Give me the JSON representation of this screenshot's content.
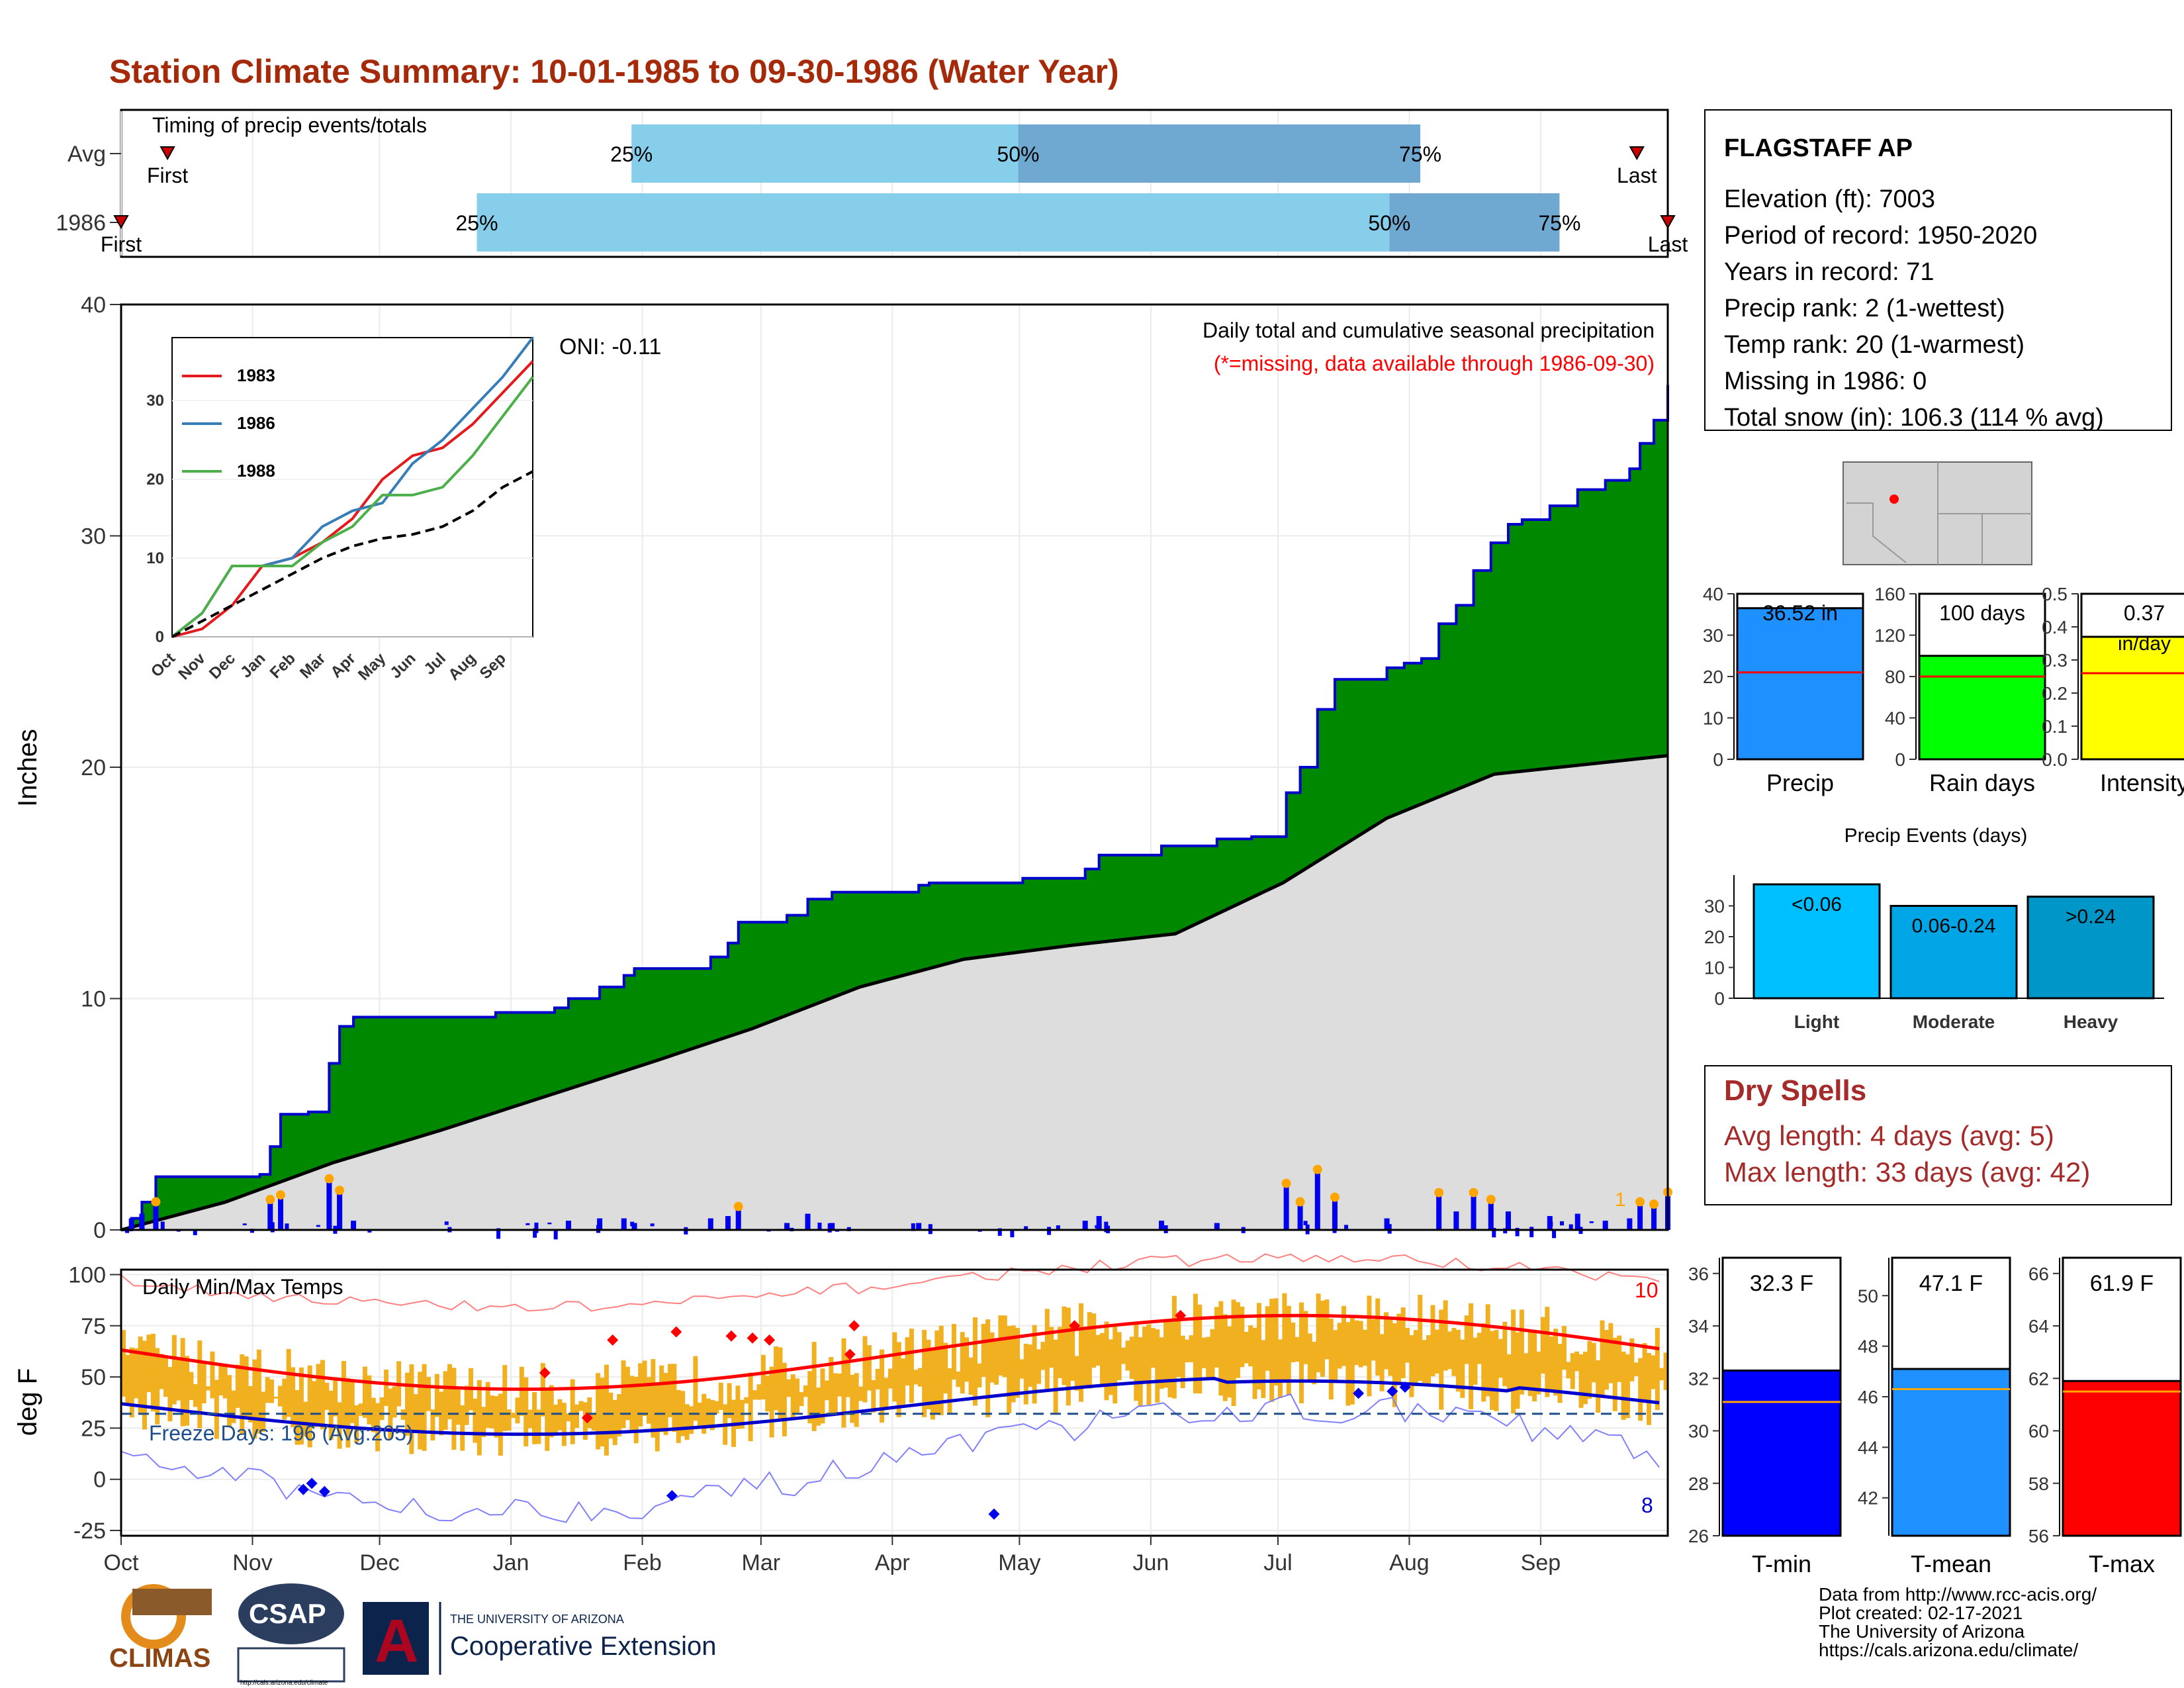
{
  "title": "Station Climate Summary: 10-01-1985 to 09-30-1986 (Water Year)",
  "months": [
    "Oct",
    "Nov",
    "Dec",
    "Jan",
    "Feb",
    "Mar",
    "Apr",
    "May",
    "Jun",
    "Jul",
    "Aug",
    "Sep"
  ],
  "timing": {
    "label": "Timing of precip events/totals",
    "rows": [
      {
        "name": "Avg",
        "first_label": "First",
        "last_label": "Last",
        "first": 0.03,
        "q25": 0.33,
        "q50": 0.58,
        "q75": 0.84,
        "last": 0.98,
        "pct_labels": [
          "25%",
          "50%",
          "75%"
        ]
      },
      {
        "name": "1986",
        "first_label": "First",
        "last_label": "Last",
        "first": 0.0,
        "q25": 0.23,
        "q50": 0.82,
        "q75": 0.93,
        "last": 1.0,
        "pct_labels": [
          "25%",
          "50%",
          "75%"
        ]
      }
    ]
  },
  "station": {
    "name": "FLAGSTAFF AP",
    "lines": [
      "Elevation (ft): 7003",
      "Period of record: 1950-2020",
      "Years in record: 71",
      "Precip rank: 2 (1-wettest)",
      "Temp rank: 20 (1-warmest)",
      "Missing in 1986: 0",
      "Total snow (in): 106.3 (114 % avg)"
    ]
  },
  "precip_panel": {
    "ylabel": "Inches",
    "oni": "ONI: -0.11",
    "caption": "Daily total and cumulative seasonal precipitation",
    "caption_red": "(*=missing, data available through 1986-09-30)",
    "corner_value": "1",
    "colors": {
      "cum": "#008800",
      "avg": "#dddddd",
      "line": "#0000cc"
    }
  },
  "inset": {
    "legend": [
      "1983",
      "1986",
      "1988"
    ],
    "colors": [
      "#e41a1c",
      "#377eb8",
      "#4daf4a"
    ]
  },
  "temp_panel": {
    "ylabel": "deg F",
    "label": "Daily Min/Max Temps",
    "freeze": "Freeze Days: 196 (Avg:205)",
    "count_high": "10",
    "count_low": "8"
  },
  "mini_bars": [
    {
      "label": "Precip",
      "value_text": "36.52 in",
      "value": 36.52,
      "avg": 21,
      "max": 40,
      "ticks": [
        "0",
        "10",
        "20",
        "30",
        "40"
      ],
      "color": "#1e90ff"
    },
    {
      "label": "Rain days",
      "value_text": "100 days",
      "value": 100,
      "avg": 80,
      "max": 160,
      "ticks": [
        "0",
        "40",
        "80",
        "120",
        "160"
      ],
      "color": "#00ff00"
    },
    {
      "label": "Intensity",
      "value_text": "0.37",
      "value_text2": "in/day",
      "value": 0.37,
      "avg": 0.26,
      "max": 0.5,
      "ticks": [
        "0.0",
        "0.1",
        "0.2",
        "0.3",
        "0.4",
        "0.5"
      ],
      "color": "#ffff00"
    }
  ],
  "events": {
    "title": "Precip Events (days)",
    "categories": [
      "Light",
      "Moderate",
      "Heavy"
    ],
    "labels": [
      "<0.06",
      "0.06-0.24",
      ">0.24"
    ],
    "values": [
      37,
      30,
      33
    ],
    "ticks": [
      "0",
      "10",
      "20",
      "30"
    ],
    "colors": [
      "#00bfff",
      "#00a5e6",
      "#0096c8"
    ]
  },
  "dry": {
    "title": "Dry Spells",
    "avg": "Avg length: 4 days (avg: 5)",
    "max": "Max length: 33 days (avg: 42)"
  },
  "temp_bars": [
    {
      "label": "T-min",
      "value_text": "32.3 F",
      "value": 32.3,
      "avg": 31.1,
      "min": 26,
      "max": 36.6,
      "ticks": [
        "26",
        "28",
        "30",
        "32",
        "34",
        "36"
      ],
      "color": "#0000ff"
    },
    {
      "label": "T-mean",
      "value_text": "47.1 F",
      "value": 47.1,
      "avg": 46.3,
      "min": 40.5,
      "max": 51.5,
      "ticks": [
        "42",
        "44",
        "46",
        "48",
        "50"
      ],
      "color": "#1e90ff"
    },
    {
      "label": "T-max",
      "value_text": "61.9 F",
      "value": 61.9,
      "avg": 61.5,
      "min": 56,
      "max": 66.6,
      "ticks": [
        "56",
        "58",
        "60",
        "62",
        "64",
        "66"
      ],
      "color": "#ff0000"
    }
  ],
  "credits": [
    "Data from http://www.rcc-acis.org/",
    "Plot created: 02-17-2021",
    "The University of Arizona",
    "https://cals.arizona.edu/climate/"
  ],
  "logos": {
    "climas": "CLIMAS",
    "csap": "CSAP",
    "csap_url": "http://cals.arizona.edu/climate",
    "ua_small": "THE UNIVERSITY OF ARIZONA",
    "coop": "Cooperative Extension"
  },
  "chart_data": {
    "type": "area",
    "title": "Station Climate Summary: 10-01-1985 to 09-30-1986 (Water Year)",
    "ylabel": "Inches",
    "ylim": [
      0,
      40
    ],
    "x": [
      "Oct",
      "Nov",
      "Dec",
      "Jan",
      "Feb",
      "Mar",
      "Apr",
      "May",
      "Jun",
      "Jul",
      "Aug",
      "Sep"
    ],
    "yticks": [
      0,
      10,
      20,
      30,
      40
    ],
    "series": [
      {
        "name": "cumulative 1986",
        "points": [
          [
            0,
            0
          ],
          [
            3,
            0.5
          ],
          [
            6,
            1.2
          ],
          [
            10,
            2.3
          ],
          [
            40,
            2.4
          ],
          [
            43,
            3.6
          ],
          [
            46,
            5.0
          ],
          [
            54,
            5.1
          ],
          [
            60,
            7.2
          ],
          [
            63,
            8.8
          ],
          [
            67,
            9.2
          ],
          [
            108,
            9.4
          ],
          [
            125,
            9.6
          ],
          [
            129,
            10.0
          ],
          [
            138,
            10.5
          ],
          [
            145,
            11.0
          ],
          [
            148,
            11.3
          ],
          [
            160,
            11.3
          ],
          [
            170,
            11.8
          ],
          [
            175,
            12.4
          ],
          [
            178,
            13.3
          ],
          [
            192,
            13.6
          ],
          [
            198,
            14.3
          ],
          [
            205,
            14.6
          ],
          [
            230,
            14.9
          ],
          [
            233,
            15.0
          ],
          [
            260,
            15.2
          ],
          [
            278,
            15.6
          ],
          [
            282,
            16.2
          ],
          [
            300,
            16.6
          ],
          [
            316,
            16.9
          ],
          [
            326,
            17.0
          ],
          [
            336,
            18.9
          ],
          [
            340,
            20.0
          ],
          [
            345,
            22.5
          ],
          [
            350,
            23.8
          ],
          [
            365,
            24.3
          ],
          [
            370,
            24.5
          ],
          [
            375,
            24.7
          ],
          [
            380,
            26.2
          ],
          [
            385,
            27.0
          ],
          [
            390,
            28.5
          ],
          [
            395,
            29.7
          ],
          [
            400,
            30.5
          ],
          [
            404,
            30.7
          ],
          [
            412,
            31.3
          ],
          [
            420,
            32.0
          ],
          [
            428,
            32.4
          ],
          [
            435,
            32.9
          ],
          [
            438,
            34.0
          ],
          [
            442,
            35.0
          ],
          [
            446,
            36.52
          ]
        ]
      },
      {
        "name": "average",
        "points": [
          [
            0,
            0
          ],
          [
            30,
            1.2
          ],
          [
            61,
            2.9
          ],
          [
            92,
            4.3
          ],
          [
            123,
            5.8
          ],
          [
            154,
            7.3
          ],
          [
            182,
            8.7
          ],
          [
            213,
            10.5
          ],
          [
            243,
            11.7
          ],
          [
            274,
            12.3
          ],
          [
            304,
            12.8
          ],
          [
            335,
            15.0
          ],
          [
            365,
            17.8
          ],
          [
            396,
            19.7
          ],
          [
            446,
            20.5
          ]
        ]
      }
    ],
    "temps": {
      "ylim": [
        -25,
        100
      ],
      "yticks": [
        -25,
        0,
        25,
        50,
        75,
        100
      ],
      "freeze_line": 32
    }
  }
}
